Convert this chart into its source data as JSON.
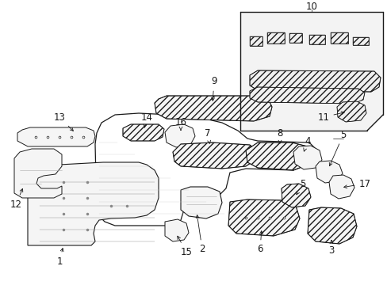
{
  "background_color": "#ffffff",
  "line_color": "#1a1a1a",
  "label_fontsize": 8.5,
  "inset_bg": "#e8e8e8",
  "fig_w": 4.89,
  "fig_h": 3.6,
  "dpi": 100
}
